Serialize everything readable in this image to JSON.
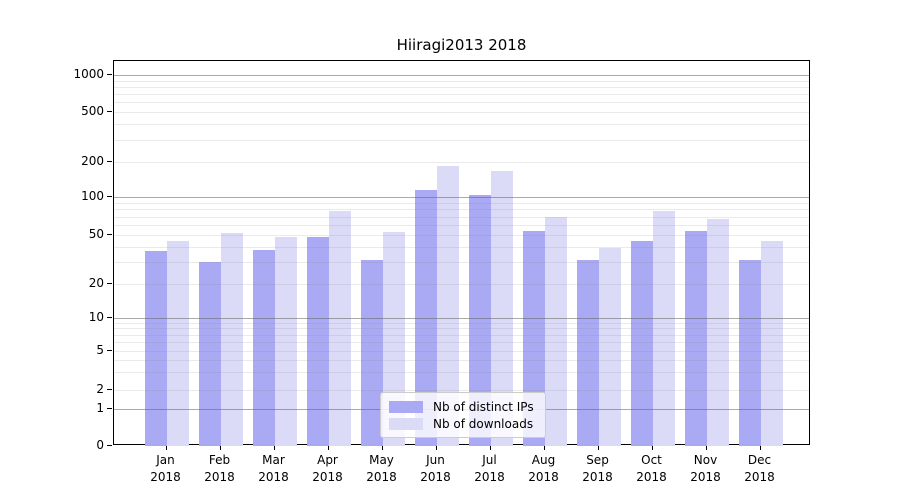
{
  "title": "Hiiragi2013 2018",
  "chart_data": {
    "type": "bar",
    "title": "Hiiragi2013 2018",
    "categories": [
      "Jan",
      "Feb",
      "Mar",
      "Apr",
      "May",
      "Jun",
      "Jul",
      "Aug",
      "Sep",
      "Oct",
      "Nov",
      "Dec"
    ],
    "x_year_label": "2018",
    "series": [
      {
        "name": "Nb of distinct IPs",
        "color": "#a9a9f4",
        "values": [
          37,
          30,
          38,
          48,
          31,
          116,
          104,
          54,
          31,
          45,
          54,
          31
        ]
      },
      {
        "name": "Nb of downloads",
        "color": "#dbdbf8",
        "values": [
          45,
          52,
          48,
          78,
          53,
          186,
          167,
          70,
          39,
          78,
          67,
          45
        ]
      }
    ],
    "yscale": "log-with-zero",
    "yticks": [
      0,
      1,
      2,
      5,
      10,
      20,
      50,
      100,
      200,
      500,
      1000
    ],
    "ytick_labels": [
      "0",
      "1",
      "2",
      "5",
      "10",
      "20",
      "50",
      "100",
      "200",
      "500",
      "1000"
    ],
    "ylim": [
      0,
      1300
    ],
    "xlabel": "",
    "ylabel": "",
    "grid": "both",
    "legend_position": "inside-bottom-center"
  },
  "colors": {
    "background": "#ffffff",
    "spine": "#000000",
    "bar_distinct_ips": "#a9a9f4",
    "bar_downloads": "#dbdbf8",
    "grid_major": "rgba(100,100,100,0.55)",
    "grid_minor": "rgba(140,140,140,0.18)",
    "legend_bg": "rgba(255,255,255,0.8)",
    "legend_border": "#cccccc",
    "text": "#000000"
  }
}
